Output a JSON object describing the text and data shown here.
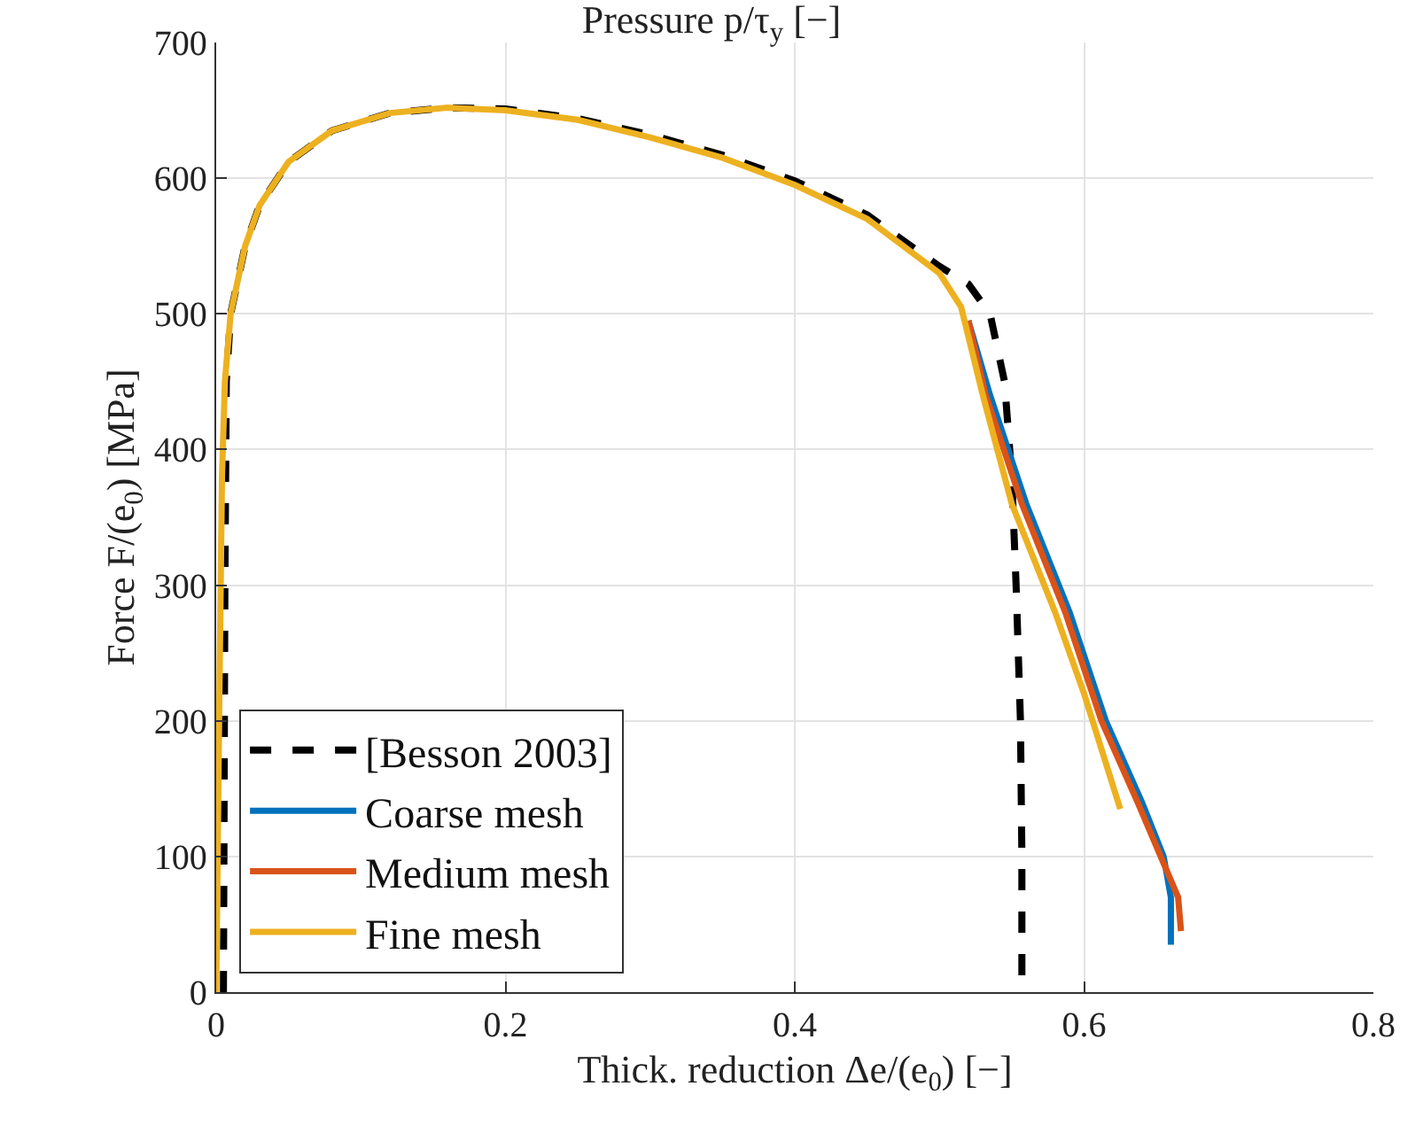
{
  "chart_data": {
    "type": "line",
    "title": "Pressure p/τ$_{y}$ [−]",
    "xlabel": "Thick. reduction Δe/(e$_{0}$) [−]",
    "ylabel": "Force F/(e$_{0}$) [MPa]",
    "xlim": [
      0,
      0.8
    ],
    "xticks": [
      0,
      0.2,
      0.4,
      0.6,
      0.8
    ],
    "ylim": [
      0,
      700
    ],
    "yticks": [
      0,
      100,
      200,
      300,
      400,
      500,
      600,
      700
    ],
    "grid": true,
    "legend": "bottom left",
    "series": [
      {
        "name": "[Besson 2003]",
        "color": "#000000",
        "line_style": "dashed",
        "x": [
          0.005,
          0.006,
          0.007,
          0.01,
          0.02,
          0.03,
          0.05,
          0.08,
          0.12,
          0.16,
          0.2,
          0.25,
          0.3,
          0.35,
          0.4,
          0.45,
          0.5,
          0.52,
          0.535,
          0.545,
          0.55,
          0.553,
          0.556,
          0.557,
          0.557
        ],
        "values": [
          0,
          300,
          450,
          500,
          550,
          580,
          612,
          635,
          648,
          652,
          651,
          644,
          632,
          617,
          598,
          573,
          535,
          522,
          500,
          450,
          380,
          300,
          200,
          100,
          0
        ]
      },
      {
        "name": "Coarse mesh",
        "color": "#0072bd",
        "line_style": "solid",
        "x": [
          0.52,
          0.535,
          0.56,
          0.59,
          0.615,
          0.64,
          0.655,
          0.66,
          0.66
        ],
        "values": [
          495,
          440,
          360,
          280,
          200,
          140,
          100,
          70,
          35
        ]
      },
      {
        "name": "Medium mesh",
        "color": "#d95319",
        "line_style": "solid",
        "x": [
          0.52,
          0.532,
          0.557,
          0.587,
          0.612,
          0.637,
          0.655,
          0.665,
          0.667
        ],
        "values": [
          495,
          440,
          360,
          280,
          200,
          140,
          95,
          70,
          45
        ]
      },
      {
        "name": "Fine mesh",
        "color": "#edb120",
        "line_style": "solid",
        "x": [
          0,
          0.002,
          0.004,
          0.006,
          0.01,
          0.02,
          0.03,
          0.05,
          0.08,
          0.12,
          0.16,
          0.2,
          0.25,
          0.3,
          0.35,
          0.4,
          0.45,
          0.5,
          0.515,
          0.53,
          0.55,
          0.58,
          0.6,
          0.625
        ],
        "values": [
          0,
          200,
          380,
          450,
          500,
          550,
          580,
          612,
          635,
          648,
          652,
          650,
          643,
          630,
          615,
          595,
          570,
          530,
          505,
          440,
          360,
          280,
          220,
          135
        ]
      }
    ]
  }
}
